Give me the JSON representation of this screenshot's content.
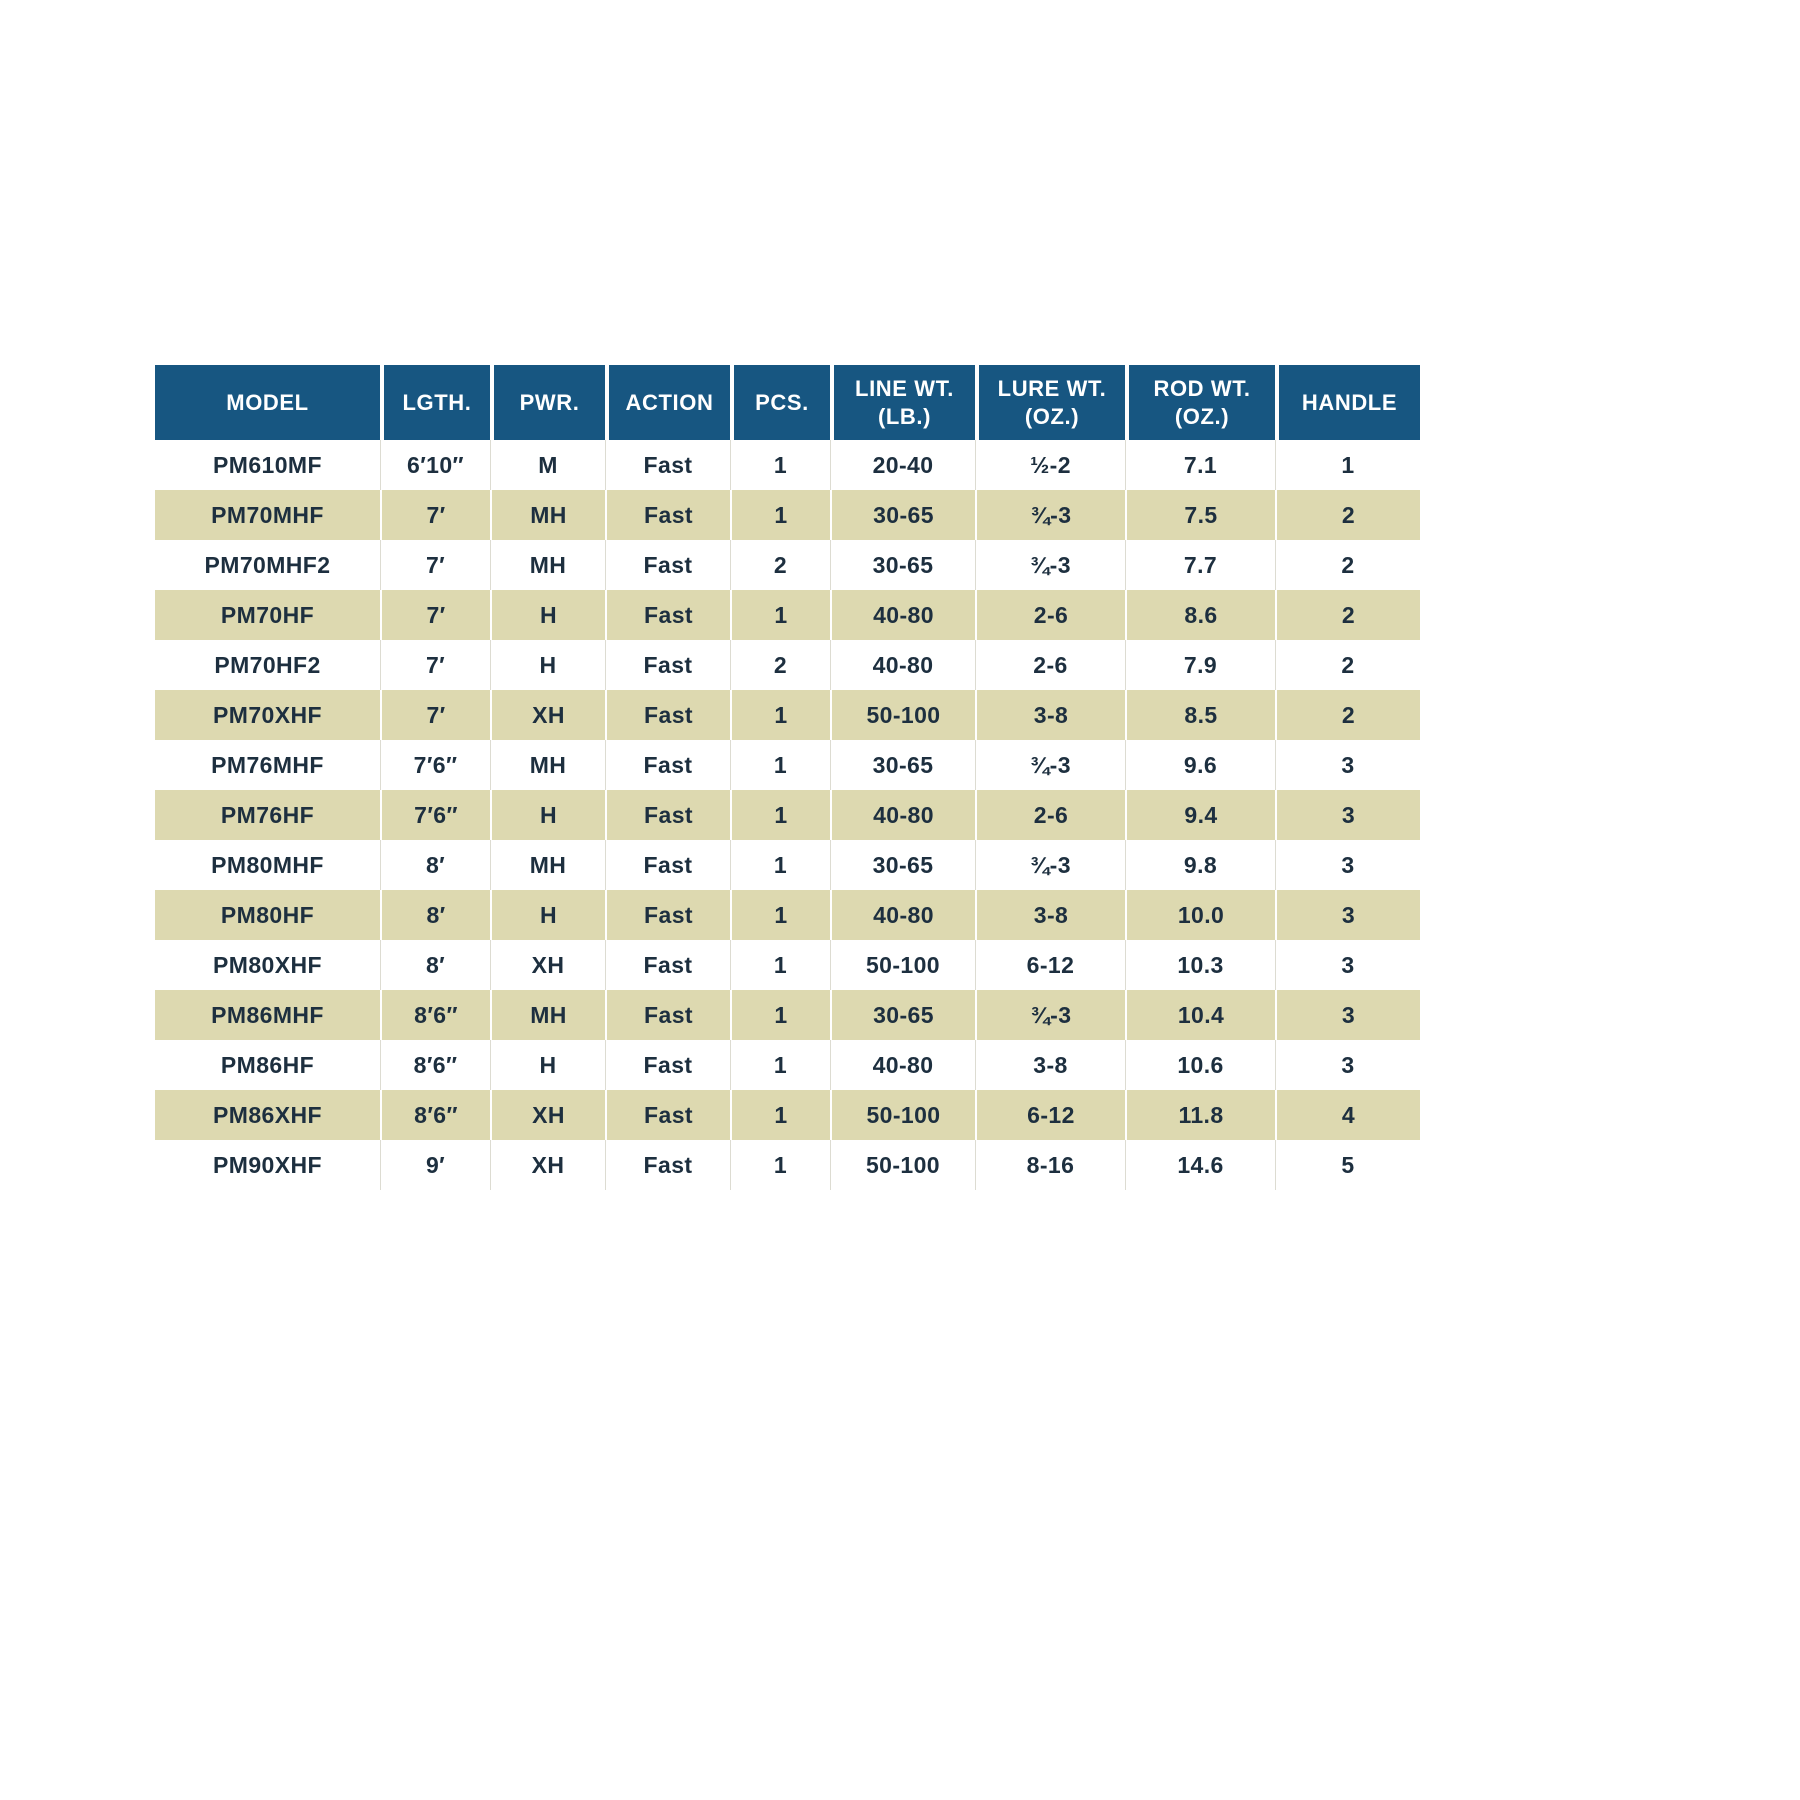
{
  "page": {
    "background_color": "#ffffff"
  },
  "table": {
    "header_bg": "#175681",
    "header_text_color": "#ffffff",
    "alt_row_bg": "#ddd9b0",
    "text_color": "#1d2f3f",
    "columns": [
      "MODEL",
      "LGTH.",
      "PWR.",
      "ACTION",
      "PCS.",
      "LINE WT.\n(LB.)",
      "LURE WT.\n(OZ.)",
      "ROD WT.\n(OZ.)",
      "HANDLE"
    ],
    "rows": [
      [
        "PM610MF",
        "6′10″",
        "M",
        "Fast",
        "1",
        "20-40",
        "½-2",
        "7.1",
        "1"
      ],
      [
        "PM70MHF",
        "7′",
        "MH",
        "Fast",
        "1",
        "30-65",
        "¾-3",
        "7.5",
        "2"
      ],
      [
        "PM70MHF2",
        "7′",
        "MH",
        "Fast",
        "2",
        "30-65",
        "¾-3",
        "7.7",
        "2"
      ],
      [
        "PM70HF",
        "7′",
        "H",
        "Fast",
        "1",
        "40-80",
        "2-6",
        "8.6",
        "2"
      ],
      [
        "PM70HF2",
        "7′",
        "H",
        "Fast",
        "2",
        "40-80",
        "2-6",
        "7.9",
        "2"
      ],
      [
        "PM70XHF",
        "7′",
        "XH",
        "Fast",
        "1",
        "50-100",
        "3-8",
        "8.5",
        "2"
      ],
      [
        "PM76MHF",
        "7′6″",
        "MH",
        "Fast",
        "1",
        "30-65",
        "¾-3",
        "9.6",
        "3"
      ],
      [
        "PM76HF",
        "7′6″",
        "H",
        "Fast",
        "1",
        "40-80",
        "2-6",
        "9.4",
        "3"
      ],
      [
        "PM80MHF",
        "8′",
        "MH",
        "Fast",
        "1",
        "30-65",
        "¾-3",
        "9.8",
        "3"
      ],
      [
        "PM80HF",
        "8′",
        "H",
        "Fast",
        "1",
        "40-80",
        "3-8",
        "10.0",
        "3"
      ],
      [
        "PM80XHF",
        "8′",
        "XH",
        "Fast",
        "1",
        "50-100",
        "6-12",
        "10.3",
        "3"
      ],
      [
        "PM86MHF",
        "8′6″",
        "MH",
        "Fast",
        "1",
        "30-65",
        "¾-3",
        "10.4",
        "3"
      ],
      [
        "PM86HF",
        "8′6″",
        "H",
        "Fast",
        "1",
        "40-80",
        "3-8",
        "10.6",
        "3"
      ],
      [
        "PM86XHF",
        "8′6″",
        "XH",
        "Fast",
        "1",
        "50-100",
        "6-12",
        "11.8",
        "4"
      ],
      [
        "PM90XHF",
        "9′",
        "XH",
        "Fast",
        "1",
        "50-100",
        "8-16",
        "14.6",
        "5"
      ]
    ]
  }
}
